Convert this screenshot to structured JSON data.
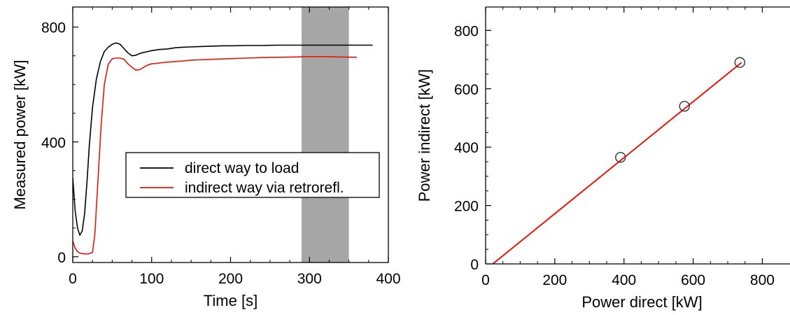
{
  "chart_data": [
    {
      "type": "line",
      "xlabel": "Time [s]",
      "ylabel": "Measured power [kW]",
      "xlim": [
        0,
        400
      ],
      "ylim": [
        -20,
        870
      ],
      "xticks": [
        0,
        100,
        200,
        300,
        400
      ],
      "yticks": [
        0,
        400,
        800
      ],
      "grid": false,
      "legend_position": "center-right",
      "shaded_region": {
        "x_start": 290,
        "x_end": 350,
        "color": "#a6a6a6"
      },
      "series": [
        {
          "name": "direct way to load",
          "color": "#000000",
          "x": [
            0,
            3,
            6,
            9,
            12,
            15,
            18,
            21,
            25,
            30,
            35,
            40,
            45,
            50,
            55,
            60,
            65,
            70,
            75,
            80,
            85,
            90,
            95,
            100,
            110,
            120,
            130,
            140,
            150,
            160,
            170,
            180,
            190,
            200,
            220,
            240,
            260,
            280,
            300,
            320,
            340,
            360,
            380
          ],
          "y": [
            275,
            160,
            100,
            75,
            90,
            150,
            260,
            390,
            520,
            620,
            680,
            715,
            730,
            740,
            745,
            740,
            725,
            710,
            700,
            702,
            708,
            712,
            715,
            718,
            722,
            724,
            728,
            730,
            731,
            732,
            733,
            734,
            735,
            735,
            736,
            736,
            737,
            737,
            737,
            737,
            737,
            737,
            737
          ]
        },
        {
          "name": "indirect way via retrorefl.",
          "color": "#e8140a",
          "x": [
            0,
            3,
            6,
            10,
            15,
            20,
            25,
            28,
            32,
            36,
            40,
            45,
            50,
            55,
            60,
            65,
            70,
            75,
            80,
            85,
            90,
            95,
            100,
            110,
            120,
            130,
            140,
            150,
            160,
            170,
            180,
            190,
            200,
            220,
            240,
            260,
            280,
            300,
            320,
            340,
            360
          ],
          "y": [
            55,
            30,
            18,
            12,
            10,
            10,
            15,
            80,
            270,
            460,
            600,
            670,
            690,
            692,
            692,
            688,
            672,
            660,
            650,
            652,
            660,
            668,
            672,
            675,
            678,
            680,
            682,
            685,
            686,
            687,
            688,
            689,
            690,
            692,
            694,
            695,
            696,
            697,
            697,
            696,
            695
          ]
        }
      ]
    },
    {
      "type": "scatter",
      "xlabel": "Power direct [kW]",
      "ylabel": "Power indirect [kW]",
      "xlim": [
        0,
        880
      ],
      "ylim": [
        0,
        880
      ],
      "xticks": [
        0,
        200,
        400,
        600,
        800
      ],
      "yticks": [
        0,
        200,
        400,
        600,
        800
      ],
      "grid": false,
      "points": [
        {
          "x": 390,
          "y": 365
        },
        {
          "x": 575,
          "y": 540
        },
        {
          "x": 735,
          "y": 690
        }
      ],
      "fit_line": {
        "color": "#e8140a",
        "x": [
          0,
          740
        ],
        "y": [
          -20,
          690
        ]
      }
    }
  ]
}
